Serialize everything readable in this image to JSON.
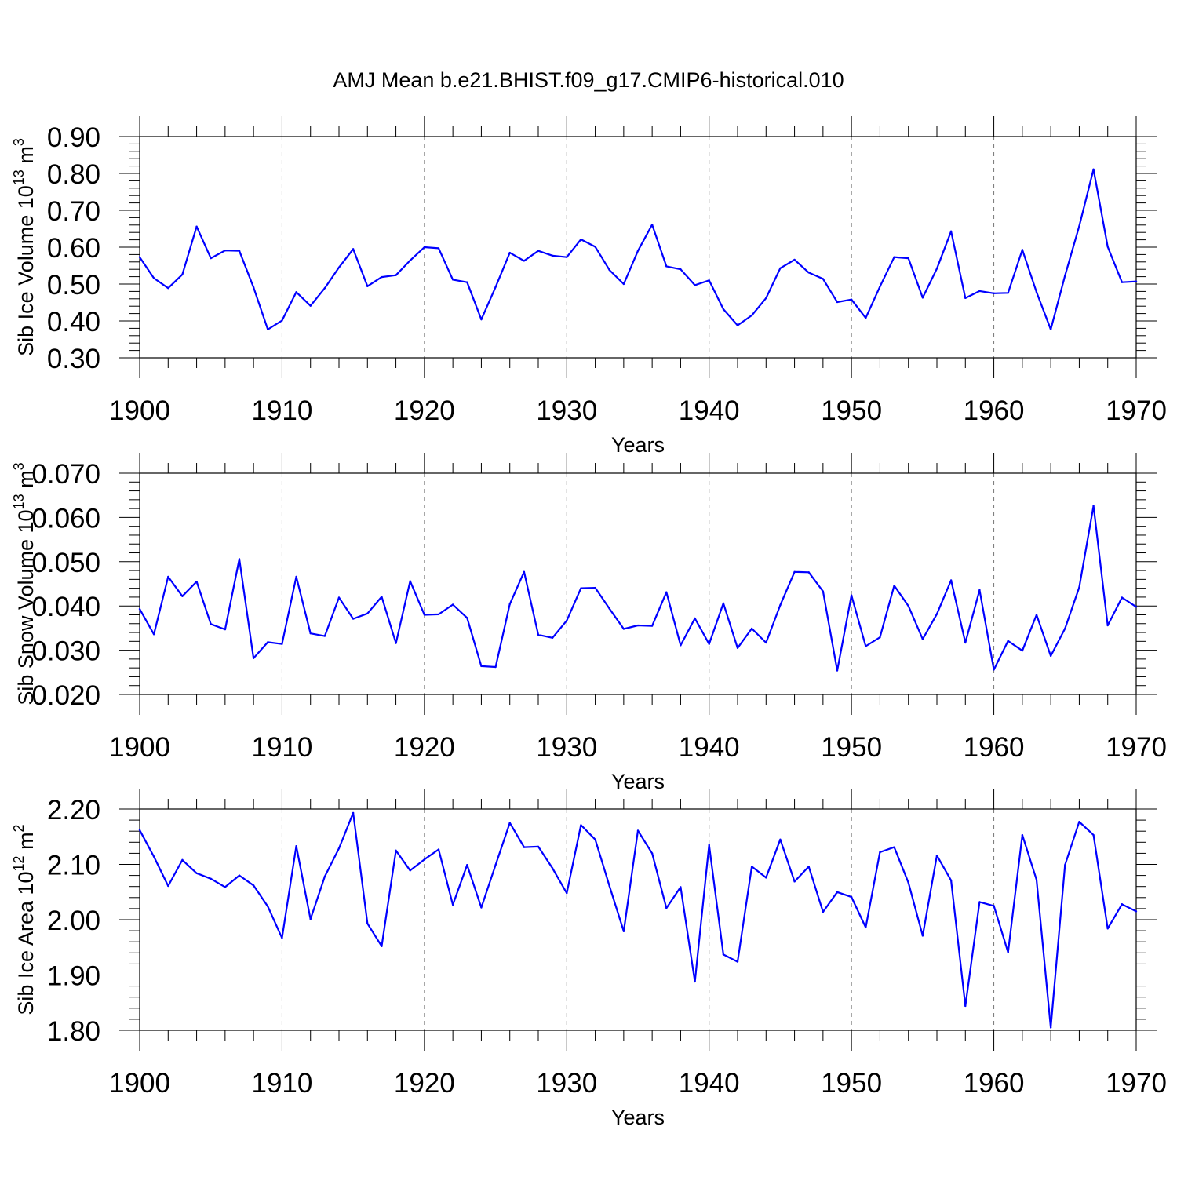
{
  "title": "AMJ Mean b.e21.BHIST.f09_g17.CMIP6-historical.010",
  "colors": {
    "series": "#0000ff",
    "axes": "#000000",
    "grid": "#777777"
  },
  "chart_data": [
    {
      "type": "line",
      "ylabel_main": "Sib Ice Volume 10",
      "ylabel_exp": "13",
      "ylabel_unit": " m",
      "ylabel_unit_exp": "3",
      "xlabel": "Years",
      "xlim": [
        1900,
        1970
      ],
      "ylim": [
        0.3,
        0.9
      ],
      "ytick_step": 0.1,
      "ytick_decimals": 2,
      "ytick_labels": [
        "0.30",
        "0.40",
        "0.50",
        "0.60",
        "0.70",
        "0.80",
        "0.90"
      ],
      "xtick_labels": [
        "1900",
        "1910",
        "1920",
        "1930",
        "1940",
        "1950",
        "1960",
        "1970"
      ],
      "grid": "x-dashed",
      "x": [
        1900,
        1901,
        1902,
        1903,
        1904,
        1905,
        1906,
        1907,
        1908,
        1909,
        1910,
        1911,
        1912,
        1913,
        1914,
        1915,
        1916,
        1917,
        1918,
        1919,
        1920,
        1921,
        1922,
        1923,
        1924,
        1925,
        1926,
        1927,
        1928,
        1929,
        1930,
        1931,
        1932,
        1933,
        1934,
        1935,
        1936,
        1937,
        1938,
        1939,
        1940,
        1941,
        1942,
        1943,
        1944,
        1945,
        1946,
        1947,
        1948,
        1949,
        1950,
        1951,
        1952,
        1953,
        1954,
        1955,
        1956,
        1957,
        1958,
        1959,
        1960,
        1961,
        1962,
        1963,
        1964,
        1965,
        1966,
        1967,
        1968,
        1969,
        1970
      ],
      "values": [
        0.573,
        0.516,
        0.489,
        0.526,
        0.656,
        0.57,
        0.591,
        0.59,
        0.491,
        0.377,
        0.401,
        0.478,
        0.441,
        0.489,
        0.545,
        0.595,
        0.494,
        0.519,
        0.524,
        0.564,
        0.6,
        0.597,
        0.512,
        0.505,
        0.404,
        0.492,
        0.585,
        0.563,
        0.59,
        0.577,
        0.573,
        0.621,
        0.601,
        0.538,
        0.5,
        0.59,
        0.661,
        0.548,
        0.54,
        0.497,
        0.51,
        0.432,
        0.388,
        0.415,
        0.462,
        0.543,
        0.566,
        0.531,
        0.514,
        0.451,
        0.458,
        0.408,
        0.493,
        0.573,
        0.57,
        0.463,
        0.542,
        0.643,
        0.462,
        0.481,
        0.475,
        0.476,
        0.593,
        0.478,
        0.377,
        0.523,
        0.657,
        0.811,
        0.601,
        0.505,
        0.507
      ]
    },
    {
      "type": "line",
      "ylabel_main": "Sib Snow Volume 10",
      "ylabel_exp": "13",
      "ylabel_unit": " m",
      "ylabel_unit_exp": "3",
      "xlabel": "Years",
      "xlim": [
        1900,
        1970
      ],
      "ylim": [
        0.02,
        0.07
      ],
      "ytick_step": 0.01,
      "ytick_decimals": 3,
      "ytick_labels": [
        "0.020",
        "0.030",
        "0.040",
        "0.050",
        "0.060",
        "0.070"
      ],
      "xtick_labels": [
        "1900",
        "1910",
        "1920",
        "1930",
        "1940",
        "1950",
        "1960",
        "1970"
      ],
      "grid": "x-dashed",
      "x": [
        1900,
        1901,
        1902,
        1903,
        1904,
        1905,
        1906,
        1907,
        1908,
        1909,
        1910,
        1911,
        1912,
        1913,
        1914,
        1915,
        1916,
        1917,
        1918,
        1919,
        1920,
        1921,
        1922,
        1923,
        1924,
        1925,
        1926,
        1927,
        1928,
        1929,
        1930,
        1931,
        1932,
        1933,
        1934,
        1935,
        1936,
        1937,
        1938,
        1939,
        1940,
        1941,
        1942,
        1943,
        1944,
        1945,
        1946,
        1947,
        1948,
        1949,
        1950,
        1951,
        1952,
        1953,
        1954,
        1955,
        1956,
        1957,
        1958,
        1959,
        1960,
        1961,
        1962,
        1963,
        1964,
        1965,
        1966,
        1967,
        1968,
        1969,
        1970
      ],
      "values": [
        0.0393,
        0.0336,
        0.0466,
        0.0422,
        0.0455,
        0.0359,
        0.0347,
        0.0506,
        0.0282,
        0.0318,
        0.0314,
        0.0466,
        0.0338,
        0.0332,
        0.0419,
        0.0371,
        0.0383,
        0.0421,
        0.0316,
        0.0456,
        0.038,
        0.0381,
        0.0403,
        0.0373,
        0.0264,
        0.0262,
        0.0404,
        0.0477,
        0.0335,
        0.0328,
        0.0367,
        0.044,
        0.0441,
        0.0394,
        0.0348,
        0.0356,
        0.0355,
        0.0431,
        0.0311,
        0.0372,
        0.0314,
        0.0406,
        0.0305,
        0.0349,
        0.0317,
        0.0402,
        0.0477,
        0.0476,
        0.0433,
        0.0254,
        0.0424,
        0.0309,
        0.0329,
        0.0446,
        0.04,
        0.0325,
        0.0382,
        0.0458,
        0.0317,
        0.0436,
        0.0256,
        0.0321,
        0.0299,
        0.038,
        0.0287,
        0.0349,
        0.0442,
        0.0626,
        0.0356,
        0.0419,
        0.0398
      ]
    },
    {
      "type": "line",
      "ylabel_main": "Sib Ice Area 10",
      "ylabel_exp": "12",
      "ylabel_unit": " m",
      "ylabel_unit_exp": "2",
      "xlabel": "Years",
      "xlim": [
        1900,
        1970
      ],
      "ylim": [
        1.8,
        2.2
      ],
      "ytick_step": 0.1,
      "ytick_decimals": 2,
      "ytick_labels": [
        "1.80",
        "1.90",
        "2.00",
        "2.10",
        "2.20"
      ],
      "xtick_labels": [
        "1900",
        "1910",
        "1920",
        "1930",
        "1940",
        "1950",
        "1960",
        "1970"
      ],
      "grid": "x-dashed",
      "x": [
        1900,
        1901,
        1902,
        1903,
        1904,
        1905,
        1906,
        1907,
        1908,
        1909,
        1910,
        1911,
        1912,
        1913,
        1914,
        1915,
        1916,
        1917,
        1918,
        1919,
        1920,
        1921,
        1922,
        1923,
        1924,
        1925,
        1926,
        1927,
        1928,
        1929,
        1930,
        1931,
        1932,
        1933,
        1934,
        1935,
        1936,
        1937,
        1938,
        1939,
        1940,
        1941,
        1942,
        1943,
        1944,
        1945,
        1946,
        1947,
        1948,
        1949,
        1950,
        1951,
        1952,
        1953,
        1954,
        1955,
        1956,
        1957,
        1958,
        1959,
        1960,
        1961,
        1962,
        1963,
        1964,
        1965,
        1966,
        1967,
        1968,
        1969,
        1970
      ],
      "values": [
        2.162,
        2.114,
        2.061,
        2.108,
        2.084,
        2.074,
        2.059,
        2.08,
        2.062,
        2.024,
        1.967,
        2.133,
        2.001,
        2.078,
        2.129,
        2.193,
        1.993,
        1.952,
        2.125,
        2.089,
        2.109,
        2.127,
        2.027,
        2.099,
        2.022,
        2.099,
        2.175,
        2.131,
        2.132,
        2.093,
        2.048,
        2.171,
        2.145,
        2.061,
        1.979,
        2.161,
        2.12,
        2.021,
        2.059,
        1.888,
        2.135,
        1.937,
        1.924,
        2.096,
        2.076,
        2.145,
        2.069,
        2.096,
        2.014,
        2.05,
        2.041,
        1.986,
        2.122,
        2.131,
        2.067,
        1.971,
        2.116,
        2.071,
        1.844,
        2.032,
        2.025,
        1.941,
        2.153,
        2.072,
        1.805,
        2.099,
        2.177,
        2.153,
        1.984,
        2.028,
        2.015
      ]
    }
  ]
}
